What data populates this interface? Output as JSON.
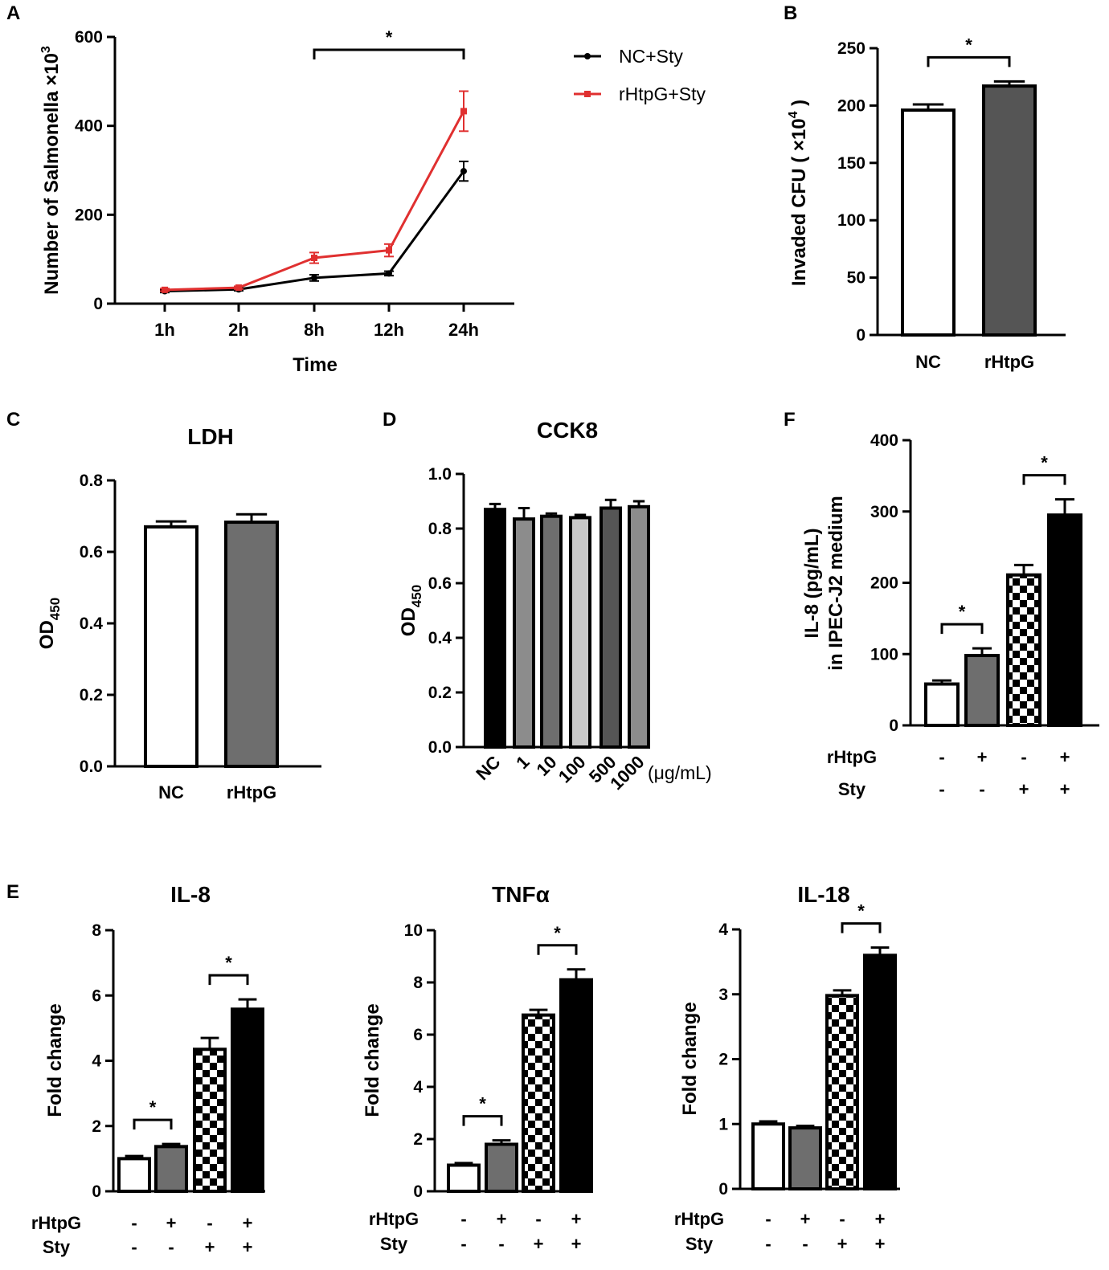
{
  "colors": {
    "black": "#000000",
    "red": "#e03030",
    "white": "#ffffff",
    "dark_gray": "#555555",
    "mid_gray": "#8c8c8c",
    "light_gray": "#c8c8c8",
    "gray": "#6e6e6e"
  },
  "chart_data": [
    {
      "id": "A",
      "panel_label": "A",
      "type": "line",
      "title": "",
      "xlabel": "Time",
      "ylabel": "Number of Salmonella ×10",
      "ylabel_sup": "3",
      "categories": [
        "1h",
        "2h",
        "8h",
        "12h",
        "24h"
      ],
      "ylim": [
        0,
        600
      ],
      "yticks": [
        "0",
        "200",
        "400",
        "600"
      ],
      "grid": false,
      "legend_position": "top-right",
      "series": [
        {
          "name": "NC+Sty",
          "color": "#000000",
          "marker": "circle",
          "values": [
            28,
            32,
            58,
            68,
            298
          ],
          "errors": [
            3,
            3,
            7,
            5,
            22
          ]
        },
        {
          "name": "rHtpG+Sty",
          "color": "#e03030",
          "marker": "square",
          "values": [
            31,
            36,
            103,
            120,
            433
          ],
          "errors": [
            3,
            3,
            12,
            14,
            45
          ]
        }
      ],
      "significance": [
        {
          "from": 2,
          "to": 4,
          "label": "*"
        }
      ]
    },
    {
      "id": "B",
      "panel_label": "B",
      "type": "bar",
      "title": "",
      "xlabel": "",
      "ylabel": "Invaded CFU ( ×10",
      "ylabel_sup": "4",
      "ylabel_tail": ")",
      "categories": [
        "NC",
        "rHtpG"
      ],
      "ylim": [
        0,
        250
      ],
      "yticks": [
        "0",
        "50",
        "100",
        "150",
        "200",
        "250"
      ],
      "grid": false,
      "values": [
        196,
        217
      ],
      "errors": [
        5,
        4
      ],
      "fills": [
        "white",
        "dark_gray"
      ],
      "significance": [
        {
          "from": 0,
          "to": 1,
          "label": "*"
        }
      ]
    },
    {
      "id": "C",
      "panel_label": "C",
      "type": "bar",
      "title": "LDH",
      "xlabel": "",
      "ylabel": "OD",
      "ylabel_sub": "450",
      "categories": [
        "NC",
        "rHtpG"
      ],
      "ylim": [
        0,
        0.8
      ],
      "yticks": [
        "0.0",
        "0.2",
        "0.4",
        "0.6",
        "0.8"
      ],
      "grid": false,
      "values": [
        0.67,
        0.683
      ],
      "errors": [
        0.015,
        0.022
      ],
      "fills": [
        "white",
        "gray"
      ],
      "significance": []
    },
    {
      "id": "D",
      "panel_label": "D",
      "type": "bar",
      "title": "CCK8",
      "xlabel": "(μg/mL)",
      "ylabel": "OD",
      "ylabel_sub": "450",
      "categories": [
        "NC",
        "1",
        "10",
        "100",
        "500",
        "1000"
      ],
      "ylim": [
        0,
        1.0
      ],
      "yticks": [
        "0.0",
        "0.2",
        "0.4",
        "0.6",
        "0.8",
        "1.0"
      ],
      "grid": false,
      "values": [
        0.87,
        0.835,
        0.845,
        0.84,
        0.875,
        0.88
      ],
      "errors": [
        0.02,
        0.04,
        0.01,
        0.01,
        0.03,
        0.02
      ],
      "fills": [
        "black",
        "mid_gray",
        "gray",
        "light_gray",
        "dark_gray",
        "mid_gray"
      ],
      "significance": []
    },
    {
      "id": "F",
      "panel_label": "F",
      "type": "bar",
      "title": "",
      "xlabel": "",
      "ylabel": "IL-8 (pg/mL)",
      "ylabel2": "in IPEC-J2 medium",
      "row_labels": [
        "rHtpG",
        "Sty"
      ],
      "rHtpG": [
        "-",
        "+",
        "-",
        "+"
      ],
      "Sty": [
        "-",
        "-",
        "+",
        "+"
      ],
      "ylim": [
        0,
        400
      ],
      "yticks": [
        "0",
        "100",
        "200",
        "300",
        "400"
      ],
      "grid": false,
      "values": [
        58,
        98,
        211,
        295
      ],
      "errors": [
        5,
        10,
        14,
        22
      ],
      "fills": [
        "white",
        "gray",
        "checker",
        "black"
      ],
      "significance": [
        {
          "from": 0,
          "to": 1,
          "label": "*"
        },
        {
          "from": 2,
          "to": 3,
          "label": "*"
        }
      ]
    },
    {
      "id": "E1",
      "panel_label": "E",
      "type": "bar",
      "title": "IL-8",
      "xlabel": "",
      "ylabel": "Fold change",
      "row_labels": [
        "rHtpG",
        "Sty"
      ],
      "rHtpG": [
        "-",
        "+",
        "-",
        "+"
      ],
      "Sty": [
        "-",
        "-",
        "+",
        "+"
      ],
      "ylim": [
        0,
        8
      ],
      "yticks": [
        "0",
        "2",
        "4",
        "6",
        "8"
      ],
      "grid": false,
      "values": [
        1.0,
        1.37,
        4.35,
        5.58
      ],
      "errors": [
        0.08,
        0.08,
        0.35,
        0.3
      ],
      "fills": [
        "white",
        "gray",
        "checker",
        "black"
      ],
      "significance": [
        {
          "from": 0,
          "to": 1,
          "label": "*"
        },
        {
          "from": 2,
          "to": 3,
          "label": "*"
        }
      ]
    },
    {
      "id": "E2",
      "panel_label": "",
      "type": "bar",
      "title": "TNFα",
      "xlabel": "",
      "ylabel": "Fold change",
      "row_labels": [
        "rHtpG",
        "Sty"
      ],
      "rHtpG": [
        "-",
        "+",
        "-",
        "+"
      ],
      "Sty": [
        "-",
        "-",
        "+",
        "+"
      ],
      "ylim": [
        0,
        10
      ],
      "yticks": [
        "0",
        "2",
        "4",
        "6",
        "8",
        "10"
      ],
      "grid": false,
      "values": [
        1.0,
        1.8,
        6.75,
        8.1
      ],
      "errors": [
        0.08,
        0.15,
        0.2,
        0.4
      ],
      "fills": [
        "white",
        "gray",
        "checker",
        "black"
      ],
      "significance": [
        {
          "from": 0,
          "to": 1,
          "label": "*"
        },
        {
          "from": 2,
          "to": 3,
          "label": "*"
        }
      ]
    },
    {
      "id": "E3",
      "panel_label": "",
      "type": "bar",
      "title": "IL-18",
      "xlabel": "",
      "ylabel": "Fold change",
      "row_labels": [
        "rHtpG",
        "Sty"
      ],
      "rHtpG": [
        "-",
        "+",
        "-",
        "+"
      ],
      "Sty": [
        "-",
        "-",
        "+",
        "+"
      ],
      "ylim": [
        0,
        4
      ],
      "yticks": [
        "0",
        "1",
        "2",
        "3",
        "4"
      ],
      "grid": false,
      "values": [
        1.0,
        0.94,
        2.98,
        3.6
      ],
      "errors": [
        0.04,
        0.03,
        0.08,
        0.12
      ],
      "fills": [
        "white",
        "gray",
        "checker",
        "black"
      ],
      "significance": [
        {
          "from": 2,
          "to": 3,
          "label": "*"
        }
      ]
    }
  ]
}
